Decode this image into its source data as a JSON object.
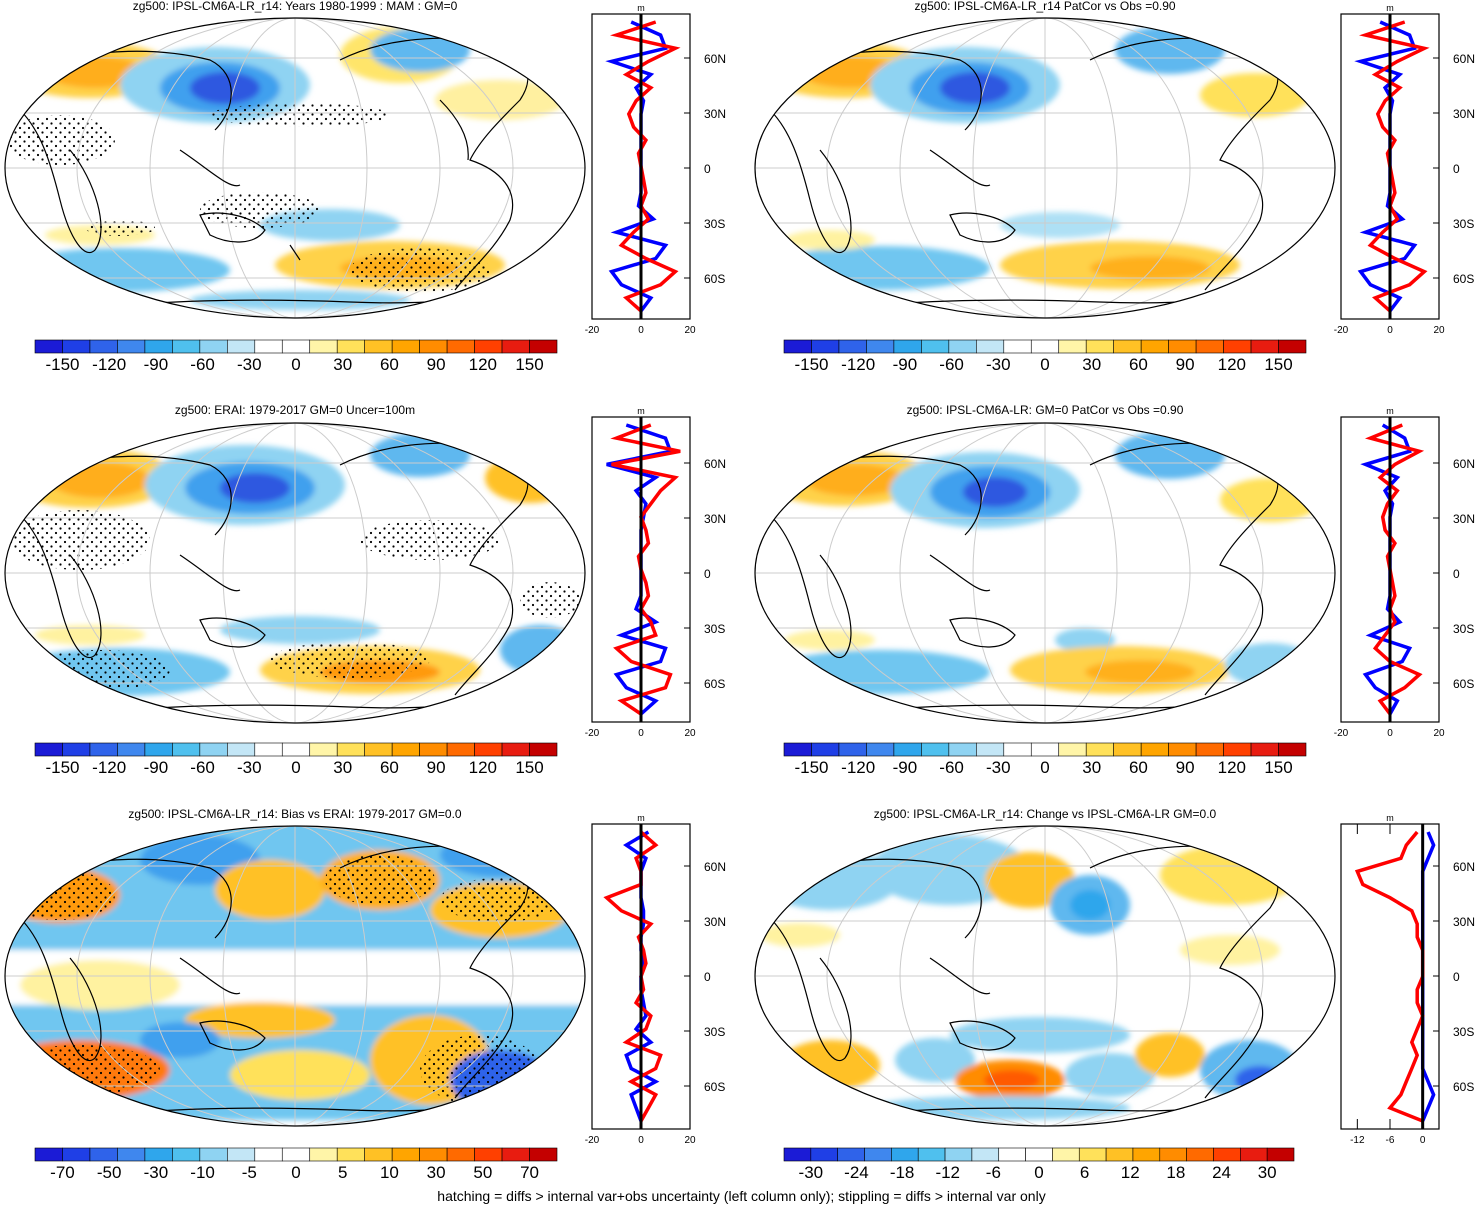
{
  "figure": {
    "footer": "hatching = diffs > internal var+obs uncertainty (left column only); stippling = diffs > internal var only",
    "zonal_unit": "m",
    "lat_labels": [
      "60N",
      "30N",
      "0",
      "30S",
      "60S"
    ]
  },
  "colors": {
    "scale": [
      "#1b1bd6",
      "#1f3fe6",
      "#2f63ea",
      "#3f87ee",
      "#2fa6ec",
      "#4fc0ee",
      "#8fd3f2",
      "#c3e6f6",
      "#ffffff",
      "#ffffff",
      "#fff5a8",
      "#ffe15a",
      "#ffc125",
      "#ffa500",
      "#ff8c00",
      "#ff6a00",
      "#ff4000",
      "#e81c10",
      "#c40000"
    ],
    "model_line": "#ff0000",
    "obs_line": "#0000ff"
  },
  "panels": [
    {
      "title": "zg500: IPSL-CM6A-LR_r14: Years 1980-1999 : MAM : GM=0",
      "colorbar_labels": [
        "-150",
        "-120",
        "-90",
        "-60",
        "-30",
        "0",
        "30",
        "60",
        "90",
        "120",
        "150"
      ],
      "x_ticks": [
        "-20",
        "0",
        "20"
      ],
      "x_range": [
        -20,
        20
      ],
      "lines": [
        "model",
        "obs"
      ],
      "stipple": true
    },
    {
      "title": "zg500: IPSL-CM6A-LR_r14 PatCor vs Obs =0.90",
      "colorbar_labels": [
        "-150",
        "-120",
        "-90",
        "-60",
        "-30",
        "0",
        "30",
        "60",
        "90",
        "120",
        "150"
      ],
      "x_ticks": [
        "-20",
        "0",
        "20"
      ],
      "x_range": [
        -20,
        20
      ],
      "lines": [
        "model",
        "obs"
      ],
      "stipple": false
    },
    {
      "title": "zg500: ERAI: 1979-2017 GM=0 Uncer=100m",
      "colorbar_labels": [
        "-150",
        "-120",
        "-90",
        "-60",
        "-30",
        "0",
        "30",
        "60",
        "90",
        "120",
        "150"
      ],
      "x_ticks": [
        "-20",
        "0",
        "20"
      ],
      "x_range": [
        -20,
        20
      ],
      "lines": [
        "model",
        "obs"
      ],
      "stipple": true
    },
    {
      "title": "zg500: IPSL-CM6A-LR: GM=0 PatCor vs Obs =0.90",
      "colorbar_labels": [
        "-150",
        "-120",
        "-90",
        "-60",
        "-30",
        "0",
        "30",
        "60",
        "90",
        "120",
        "150"
      ],
      "x_ticks": [
        "-20",
        "0",
        "20"
      ],
      "x_range": [
        -20,
        20
      ],
      "lines": [
        "model",
        "obs"
      ],
      "stipple": false
    },
    {
      "title": "zg500: IPSL-CM6A-LR_r14: Bias vs ERAI: 1979-2017 GM=0.0",
      "colorbar_labels": [
        "-70",
        "-50",
        "-30",
        "-10",
        "-5",
        "0",
        "5",
        "10",
        "30",
        "50",
        "70"
      ],
      "x_ticks": [
        "-20",
        "0",
        "20"
      ],
      "x_range": [
        -20,
        20
      ],
      "lines": [
        "model",
        "obs"
      ],
      "stipple": true
    },
    {
      "title": "zg500: IPSL-CM6A-LR_r14: Change vs IPSL-CM6A-LR GM=0.0",
      "colorbar_labels": [
        "-30",
        "-24",
        "-18",
        "-12",
        "-6",
        "0",
        "6",
        "12",
        "18",
        "24",
        "30"
      ],
      "x_ticks": [
        "-12",
        "-6",
        "0"
      ],
      "x_range": [
        -15,
        3
      ],
      "lines": [
        "model",
        "obs"
      ],
      "stipple": false
    }
  ]
}
